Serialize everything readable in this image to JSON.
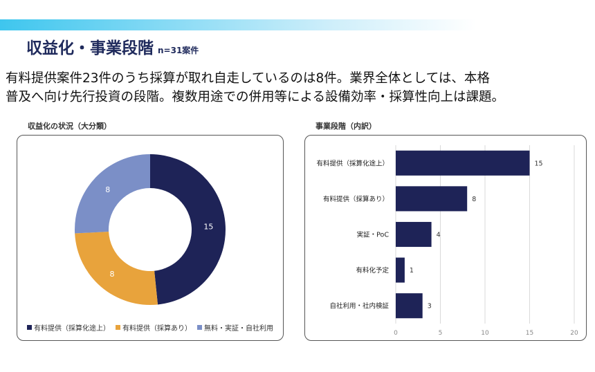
{
  "header": {
    "title": "収益化・事業段階",
    "subtitle": "n=31案件"
  },
  "lead": {
    "line1": "有料提供案件23件のうち採算が取れ自走しているのは8件。業界全体としては、本格",
    "line2": "普及へ向け先行投資の段階。複数用途での併用等による設備効率・採算性向上は課題。"
  },
  "chart_data": [
    {
      "type": "pie",
      "title": "収益化の状況（大分類）",
      "categories": [
        "有料提供（採算化途上）",
        "有料提供（採算あり）",
        "無料・実証・自社利用"
      ],
      "values": [
        15,
        8,
        8
      ],
      "colors": [
        "#1e2357",
        "#e8a33c",
        "#7b8fc7"
      ],
      "donut": true,
      "legend": "bottom"
    },
    {
      "type": "bar",
      "orientation": "horizontal",
      "title": "事業段階（内訳）",
      "categories": [
        "有料提供（採算化途上）",
        "有料提供（採算あり）",
        "実証・PoC",
        "有料化予定",
        "自社利用・社内検証"
      ],
      "values": [
        15,
        8,
        4,
        1,
        3
      ],
      "color": "#1e2357",
      "xlim": [
        0,
        20
      ],
      "xticks": [
        "0",
        "5",
        "10",
        "15",
        "20"
      ],
      "grid": true
    }
  ]
}
